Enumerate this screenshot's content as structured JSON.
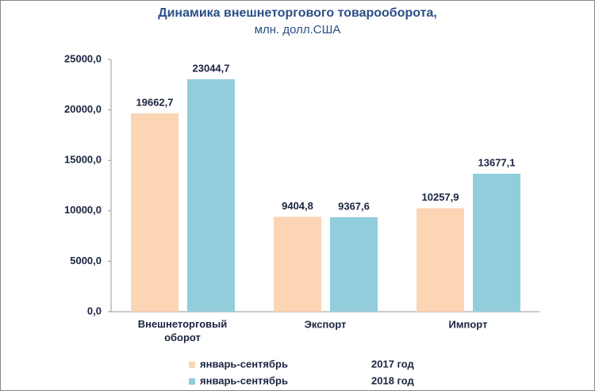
{
  "chart_data": {
    "type": "bar",
    "title": "Динамика внешнеторгового товарооборота,",
    "subtitle": "млн. долл.США",
    "categories": [
      "Внешнеторговый оборот",
      "Экспорт",
      "Импорт"
    ],
    "series": [
      {
        "name": "январь-сентябрь",
        "period": "2017 год",
        "color": "#fcd5b5",
        "values": [
          19662.7,
          9404.8,
          10257.9
        ],
        "value_labels": [
          "19662,7",
          "9404,8",
          "10257,9"
        ]
      },
      {
        "name": "январь-сентябрь",
        "period": "2018 год",
        "color": "#92cddc",
        "values": [
          23044.7,
          9367.6,
          13677.1
        ],
        "value_labels": [
          "23044,7",
          "9367,6",
          "13677,1"
        ]
      }
    ],
    "ylim": [
      0,
      25000
    ],
    "yticks": [
      {
        "value": 0,
        "label": "0,0"
      },
      {
        "value": 5000,
        "label": "5000,0"
      },
      {
        "value": 10000,
        "label": "10000,0"
      },
      {
        "value": 15000,
        "label": "15000,0"
      },
      {
        "value": 20000,
        "label": "20000,0"
      },
      {
        "value": 25000,
        "label": "25000,0"
      }
    ],
    "grid": false
  }
}
